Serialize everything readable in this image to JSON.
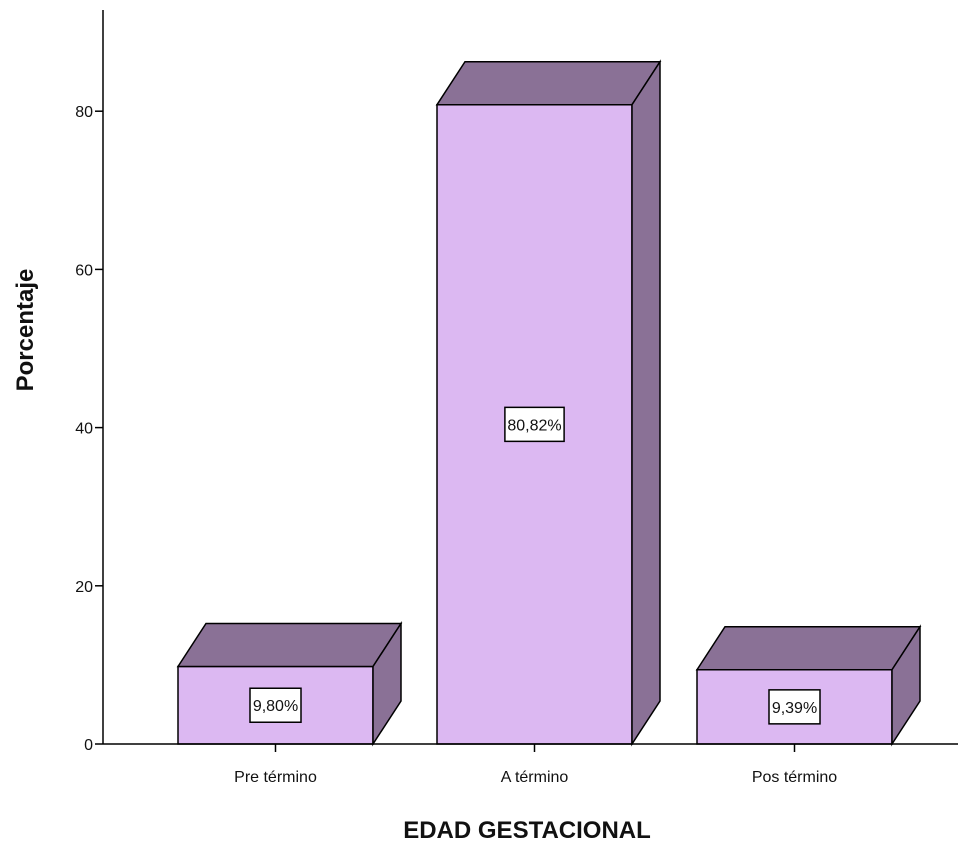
{
  "chart_data": {
    "type": "bar",
    "style": "3d",
    "categories": [
      "Pre término",
      "A término",
      "Pos término"
    ],
    "values": [
      9.8,
      80.82,
      9.39
    ],
    "data_labels": [
      "9,80%",
      "80,82%",
      "9,39%"
    ],
    "xlabel": "EDAD GESTACIONAL",
    "ylabel": "Porcentaje",
    "yticks": [
      0,
      20,
      40,
      60,
      80
    ],
    "ytick_labels": [
      "0",
      "20",
      "40",
      "60",
      "80"
    ],
    "ylim": [
      0,
      92
    ],
    "grid": false,
    "legend": "none",
    "colors": {
      "bar_front": "#dcb8f2",
      "bar_top": "#8a7196",
      "bar_side": "#8a7196",
      "outline": "#000000"
    }
  }
}
